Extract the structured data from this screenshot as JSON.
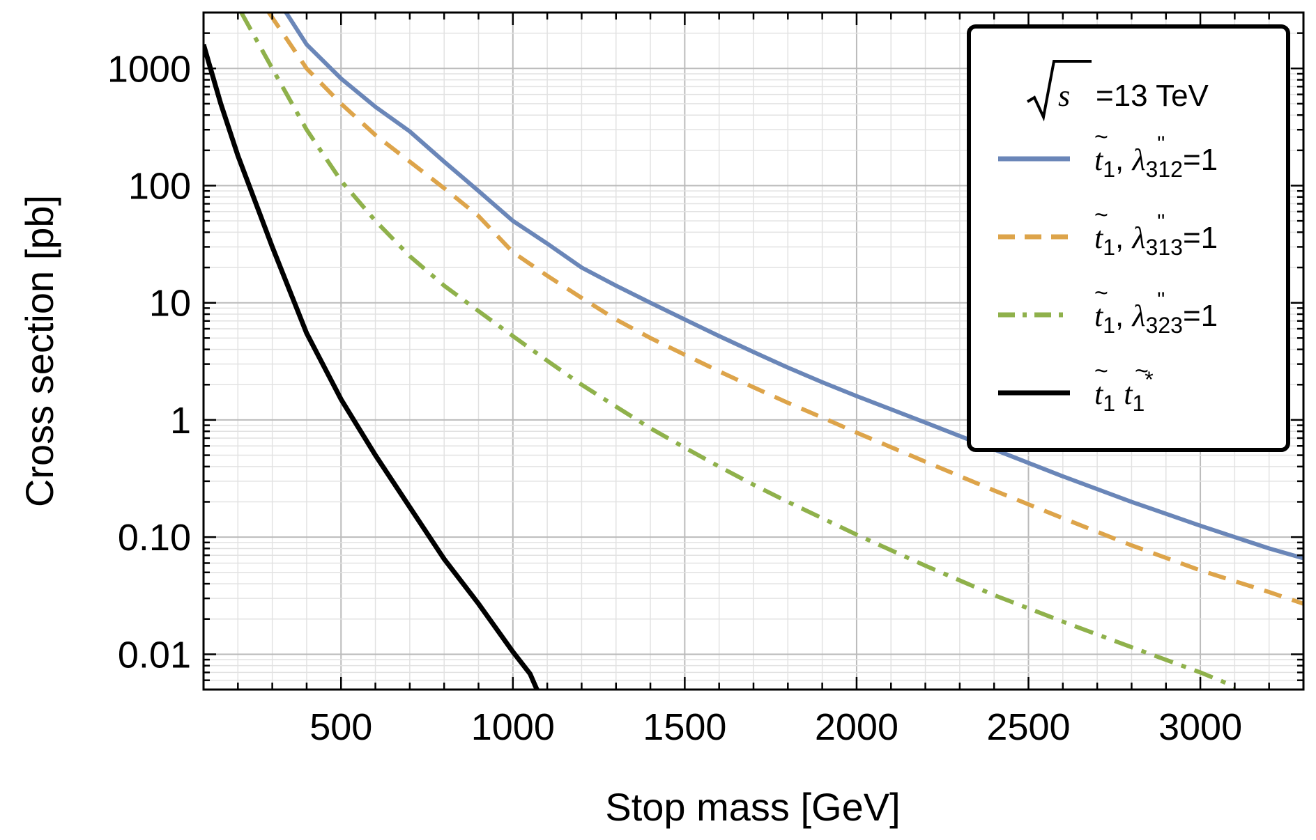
{
  "chart_data": {
    "type": "line",
    "xlabel": "Stop mass [GeV]",
    "ylabel": "Cross section [pb]",
    "xlim": [
      100,
      3300
    ],
    "ylim": [
      0.005,
      3000
    ],
    "y_scale": "log",
    "grid": true,
    "x_ticks": [
      500,
      1000,
      1500,
      2000,
      2500,
      3000
    ],
    "x_tick_labels": [
      "500",
      "1000",
      "1500",
      "2000",
      "2500",
      "3000"
    ],
    "y_ticks": [
      0.01,
      0.1,
      1,
      10,
      100,
      1000
    ],
    "y_tick_labels": [
      "0.01",
      "0.10",
      "1",
      "10",
      "100",
      "1000"
    ],
    "legend": {
      "placement": "top-right",
      "header_prefix": "s",
      "header": "=13 TeV"
    },
    "series": [
      {
        "name_parts": {
          "particle": "t",
          "sub": "1",
          "sep": ",",
          "coupling": "λ",
          "indices": "312",
          "rest": "=1"
        },
        "color": "#6a86b8",
        "dash": "solid",
        "points": [
          [
            340,
            3000
          ],
          [
            400,
            1600
          ],
          [
            500,
            820
          ],
          [
            600,
            470
          ],
          [
            700,
            290
          ],
          [
            800,
            160
          ],
          [
            900,
            90
          ],
          [
            1000,
            50
          ],
          [
            1100,
            32
          ],
          [
            1200,
            20
          ],
          [
            1300,
            14
          ],
          [
            1400,
            10
          ],
          [
            1500,
            7.2
          ],
          [
            1600,
            5.2
          ],
          [
            1700,
            3.8
          ],
          [
            1800,
            2.8
          ],
          [
            1900,
            2.1
          ],
          [
            2000,
            1.6
          ],
          [
            2200,
            0.95
          ],
          [
            2400,
            0.56
          ],
          [
            2600,
            0.33
          ],
          [
            2800,
            0.2
          ],
          [
            3000,
            0.125
          ],
          [
            3200,
            0.08
          ],
          [
            3300,
            0.066
          ]
        ]
      },
      {
        "name_parts": {
          "particle": "t",
          "sub": "1",
          "sep": ",",
          "coupling": "λ",
          "indices": "313",
          "rest": "=1"
        },
        "color": "#dda44a",
        "dash": "dashed",
        "points": [
          [
            290,
            3000
          ],
          [
            400,
            1000
          ],
          [
            500,
            500
          ],
          [
            600,
            270
          ],
          [
            700,
            160
          ],
          [
            800,
            95
          ],
          [
            900,
            55
          ],
          [
            1000,
            27
          ],
          [
            1100,
            17
          ],
          [
            1200,
            11
          ],
          [
            1300,
            7.2
          ],
          [
            1400,
            5
          ],
          [
            1500,
            3.6
          ],
          [
            1600,
            2.6
          ],
          [
            1700,
            1.9
          ],
          [
            1800,
            1.4
          ],
          [
            1900,
            1.05
          ],
          [
            2000,
            0.78
          ],
          [
            2200,
            0.44
          ],
          [
            2400,
            0.25
          ],
          [
            2600,
            0.145
          ],
          [
            2800,
            0.085
          ],
          [
            3000,
            0.052
          ],
          [
            3200,
            0.034
          ],
          [
            3300,
            0.027
          ]
        ]
      },
      {
        "name_parts": {
          "particle": "t",
          "sub": "1",
          "sep": ",",
          "coupling": "λ",
          "indices": "323",
          "rest": "=1"
        },
        "color": "#8fb14b",
        "dash": "dot-dash",
        "points": [
          [
            210,
            3000
          ],
          [
            300,
            1000
          ],
          [
            400,
            300
          ],
          [
            500,
            110
          ],
          [
            600,
            50
          ],
          [
            700,
            25
          ],
          [
            800,
            14
          ],
          [
            900,
            8.5
          ],
          [
            1000,
            5.2
          ],
          [
            1100,
            3.2
          ],
          [
            1200,
            2
          ],
          [
            1300,
            1.3
          ],
          [
            1400,
            0.85
          ],
          [
            1500,
            0.58
          ],
          [
            1600,
            0.4
          ],
          [
            1700,
            0.28
          ],
          [
            1800,
            0.2
          ],
          [
            1900,
            0.145
          ],
          [
            2000,
            0.105
          ],
          [
            2200,
            0.057
          ],
          [
            2400,
            0.032
          ],
          [
            2600,
            0.019
          ],
          [
            2800,
            0.0115
          ],
          [
            3000,
            0.007
          ],
          [
            3100,
            0.0053
          ]
        ]
      },
      {
        "name_parts": {
          "particle": "t",
          "sub": "1",
          "pair_particle": "t",
          "pair_sub": "1",
          "pair_sup": "*"
        },
        "color": "#000000",
        "dash": "solid",
        "points": [
          [
            100,
            1600
          ],
          [
            150,
            500
          ],
          [
            200,
            180
          ],
          [
            300,
            30
          ],
          [
            400,
            5.5
          ],
          [
            500,
            1.5
          ],
          [
            600,
            0.5
          ],
          [
            700,
            0.18
          ],
          [
            800,
            0.065
          ],
          [
            900,
            0.027
          ],
          [
            1000,
            0.0105
          ],
          [
            1050,
            0.0068
          ],
          [
            1070,
            0.005
          ]
        ]
      }
    ]
  }
}
